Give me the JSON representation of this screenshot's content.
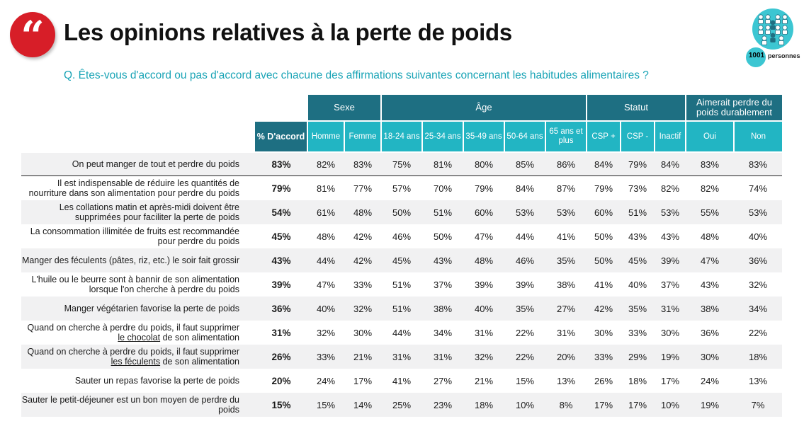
{
  "header": {
    "quote_glyph": "“",
    "title": "Les opinions relatives à la perte de poids",
    "question": "Q. Êtes-vous d'accord ou pas d'accord avec chacune des affirmations suivantes concernant les habitudes alimentaires ?",
    "panel_count": "1001",
    "panel_label": "personnes",
    "panel_icon": "people-group-icon"
  },
  "colors": {
    "accent_red": "#d71e28",
    "header_dark": "#1e6f82",
    "header_teal": "#22b5c3",
    "question_text": "#1aa4b6"
  },
  "table": {
    "groups": {
      "sexe": "Sexe",
      "age": "Âge",
      "statut": "Statut",
      "aimerait": "Aimerait perdre du poids durablement"
    },
    "columns": [
      "% D'accord",
      "Homme",
      "Femme",
      "18-24 ans",
      "25-34 ans",
      "35-49 ans",
      "50-64 ans",
      "65 ans et plus",
      "CSP +",
      "CSP -",
      "Inactif",
      "Oui",
      "Non"
    ],
    "rows": [
      {
        "label": "On peut manger de tout et perdre du poids",
        "values": [
          "83%",
          "82%",
          "83%",
          "75%",
          "81%",
          "80%",
          "85%",
          "86%",
          "84%",
          "79%",
          "84%",
          "83%",
          "83%"
        ]
      },
      {
        "label": "Il est indispensable de réduire les quantités de nourriture dans son alimentation pour perdre du poids",
        "values": [
          "79%",
          "81%",
          "77%",
          "57%",
          "70%",
          "79%",
          "84%",
          "87%",
          "79%",
          "73%",
          "82%",
          "82%",
          "74%"
        ]
      },
      {
        "label": "Les collations matin et après-midi doivent être supprimées pour faciliter la perte de poids",
        "values": [
          "54%",
          "61%",
          "48%",
          "50%",
          "51%",
          "60%",
          "53%",
          "53%",
          "60%",
          "51%",
          "53%",
          "55%",
          "53%"
        ]
      },
      {
        "label": "La consommation illimitée de fruits est recommandée pour perdre du poids",
        "values": [
          "45%",
          "48%",
          "42%",
          "46%",
          "50%",
          "47%",
          "44%",
          "41%",
          "50%",
          "43%",
          "43%",
          "48%",
          "40%"
        ]
      },
      {
        "label": "Manger des féculents (pâtes, riz, etc.) le soir fait grossir",
        "values": [
          "43%",
          "44%",
          "42%",
          "45%",
          "43%",
          "48%",
          "46%",
          "35%",
          "50%",
          "45%",
          "39%",
          "47%",
          "36%"
        ]
      },
      {
        "label": "L'huile ou le beurre sont à bannir de son alimentation lorsque l'on cherche à perdre du poids",
        "values": [
          "39%",
          "47%",
          "33%",
          "51%",
          "37%",
          "39%",
          "39%",
          "38%",
          "41%",
          "40%",
          "37%",
          "43%",
          "32%"
        ]
      },
      {
        "label": "Manger végétarien favorise la perte de poids",
        "values": [
          "36%",
          "40%",
          "32%",
          "51%",
          "38%",
          "40%",
          "35%",
          "27%",
          "42%",
          "35%",
          "31%",
          "38%",
          "34%"
        ]
      },
      {
        "label_pre": "Quand on cherche à perdre du poids, il faut supprimer",
        "label_u": "le chocolat",
        "label_post": "de son alimentation",
        "values": [
          "31%",
          "32%",
          "30%",
          "44%",
          "34%",
          "31%",
          "22%",
          "31%",
          "30%",
          "33%",
          "30%",
          "36%",
          "22%"
        ]
      },
      {
        "label_pre": "Quand on cherche à perdre du poids, il faut supprimer",
        "label_u": "les féculents",
        "label_post": "de son alimentation",
        "values": [
          "26%",
          "33%",
          "21%",
          "31%",
          "31%",
          "32%",
          "22%",
          "20%",
          "33%",
          "29%",
          "19%",
          "30%",
          "18%"
        ]
      },
      {
        "label": "Sauter un repas favorise la perte de poids",
        "values": [
          "20%",
          "24%",
          "17%",
          "41%",
          "27%",
          "21%",
          "15%",
          "13%",
          "26%",
          "18%",
          "17%",
          "24%",
          "13%"
        ]
      },
      {
        "label": "Sauter le petit-déjeuner est un bon moyen de perdre du poids",
        "values": [
          "15%",
          "15%",
          "14%",
          "25%",
          "23%",
          "18%",
          "10%",
          "8%",
          "17%",
          "17%",
          "10%",
          "19%",
          "7%"
        ]
      }
    ]
  }
}
